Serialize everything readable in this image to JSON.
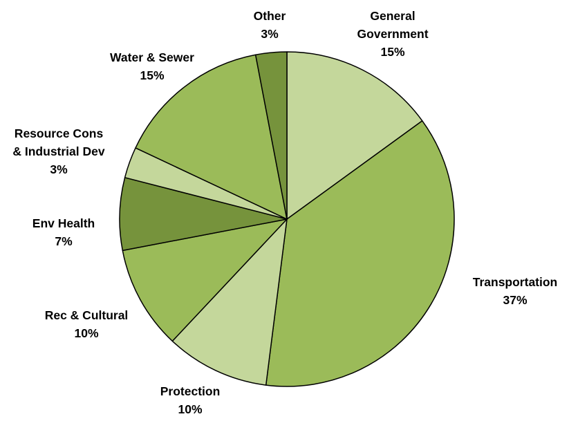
{
  "chart_data": {
    "type": "pie",
    "title": "",
    "slices": [
      {
        "name": "General Government",
        "label_lines": [
          "General",
          "Government"
        ],
        "percent_label": "15%",
        "value": 15,
        "color": "#c4d79b"
      },
      {
        "name": "Transportation",
        "label_lines": [
          "Transportation"
        ],
        "percent_label": "37%",
        "value": 37,
        "color": "#9bbb59"
      },
      {
        "name": "Protection",
        "label_lines": [
          "Protection"
        ],
        "percent_label": "10%",
        "value": 10,
        "color": "#c4d79b"
      },
      {
        "name": "Rec & Cultural",
        "label_lines": [
          "Rec & Cultural"
        ],
        "percent_label": "10%",
        "value": 10,
        "color": "#9bbb59"
      },
      {
        "name": "Env Health",
        "label_lines": [
          "Env Health"
        ],
        "percent_label": "7%",
        "value": 7,
        "color": "#76933c"
      },
      {
        "name": "Resource Cons & Industrial Dev",
        "label_lines": [
          "Resource Cons",
          "& Industrial Dev"
        ],
        "percent_label": "3%",
        "value": 3,
        "color": "#c4d79b"
      },
      {
        "name": "Water & Sewer",
        "label_lines": [
          "Water & Sewer"
        ],
        "percent_label": "15%",
        "value": 15,
        "color": "#9bbb59"
      },
      {
        "name": "Other",
        "label_lines": [
          "Other"
        ],
        "percent_label": "3%",
        "value": 3,
        "color": "#76933c"
      }
    ],
    "start_angle": "top",
    "direction": "clockwise",
    "legend": "none",
    "labels": "outside"
  }
}
